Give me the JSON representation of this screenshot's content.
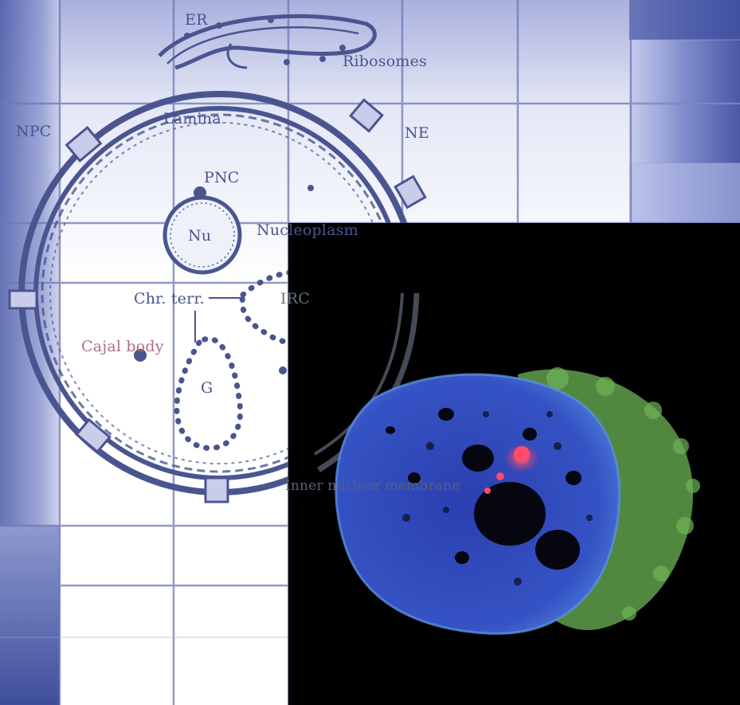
{
  "labels": {
    "er": "ER",
    "ribosomes": "Ribosomes",
    "npc": "NPC",
    "lamina": "Lamina",
    "ne": "NE",
    "pnc": "PNC",
    "nu": "Nu",
    "nucleoplasm": "Nucleoplasm",
    "chr_terr": "Chr. terr.",
    "irc": "IRC",
    "cajal_body": "Cajal body",
    "g": "G",
    "inner_nuclear_membrane": "Inner nuclear membrane"
  },
  "colors": {
    "diagram_ink": "#4a5590",
    "grid_line": "#6e78b4",
    "panel_background": "#000000",
    "nucleus_stain": "#3a55c8",
    "cytoplasm_stain": "#5fa04a",
    "nucleolar_signal": "#ff4a6a"
  },
  "icons": [
    "nucleus-outline-diagram",
    "fluorescence-micrograph"
  ]
}
